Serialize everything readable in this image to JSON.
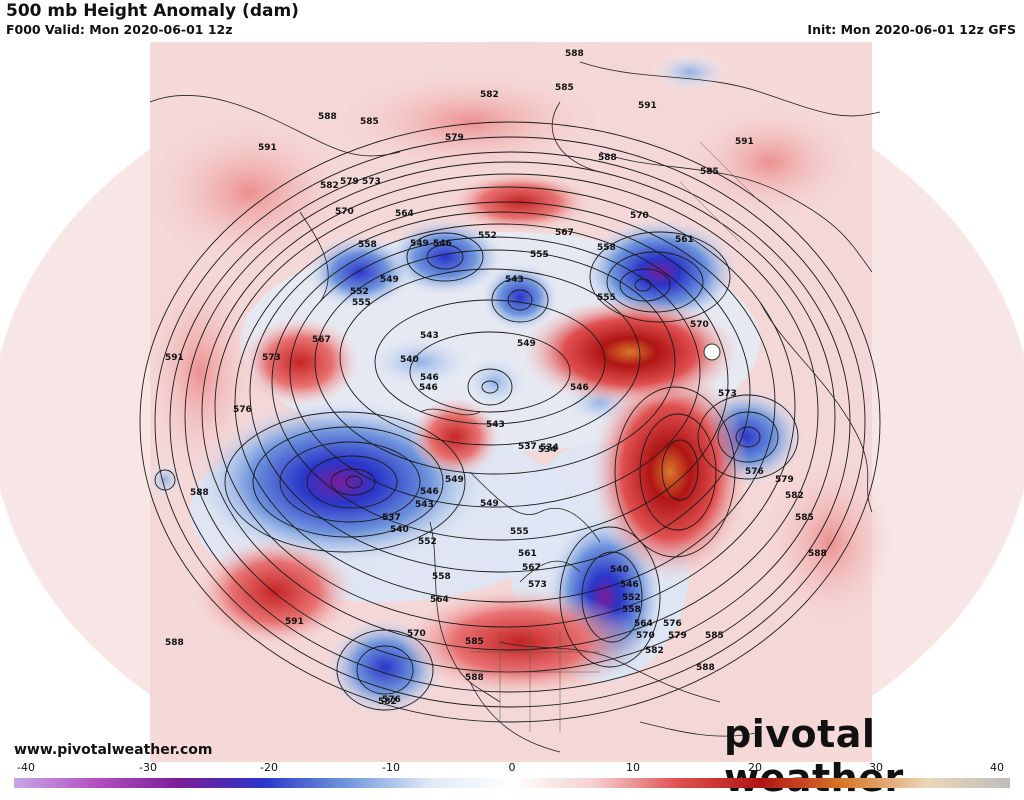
{
  "header": {
    "title": "500 mb Height Anomaly (dam)",
    "valid": "F000 Valid: Mon 2020-06-01 12z",
    "init": "Init: Mon 2020-06-01 12z GFS"
  },
  "footer": {
    "website": "www.pivotalweather.com",
    "brand": "pivotal weather"
  },
  "colorbar": {
    "ticks": [
      "-40",
      "-30",
      "-20",
      "-10",
      "0",
      "10",
      "20",
      "30",
      "40"
    ],
    "stops": [
      "#c9a6e6",
      "#b24fc0",
      "#7a1d9b",
      "#2a36c9",
      "#6f95dc",
      "#dfe9f5",
      "#ffffff",
      "#f5cfcf",
      "#e05050",
      "#b01515",
      "#d8782a",
      "#ecd7b8",
      "#bdbdbd"
    ]
  },
  "contour_labels": [
    {
      "text": "588"
    },
    {
      "text": "585"
    },
    {
      "text": "591"
    },
    {
      "text": "582"
    },
    {
      "text": "579"
    },
    {
      "text": "576"
    },
    {
      "text": "573"
    },
    {
      "text": "570"
    },
    {
      "text": "567"
    },
    {
      "text": "564"
    },
    {
      "text": "561"
    },
    {
      "text": "558"
    },
    {
      "text": "555"
    },
    {
      "text": "552"
    },
    {
      "text": "549"
    },
    {
      "text": "546"
    },
    {
      "text": "543"
    },
    {
      "text": "540"
    },
    {
      "text": "537"
    },
    {
      "text": "534"
    }
  ],
  "map_labels": [
    {
      "text": "588"
    },
    {
      "text": "585"
    },
    {
      "text": "591"
    },
    {
      "text": "582"
    },
    {
      "text": "579"
    },
    {
      "text": "573"
    },
    {
      "text": "570"
    },
    {
      "text": "567"
    },
    {
      "text": "564"
    },
    {
      "text": "558"
    },
    {
      "text": "552"
    },
    {
      "text": "555"
    },
    {
      "text": "549"
    },
    {
      "text": "546"
    },
    {
      "text": "543"
    },
    {
      "text": "540"
    },
    {
      "text": "537"
    },
    {
      "text": "534"
    },
    {
      "text": "561"
    },
    {
      "text": "576"
    },
    {
      "text": "591"
    },
    {
      "text": "588"
    },
    {
      "text": "585"
    },
    {
      "text": "582"
    },
    {
      "text": "579"
    },
    {
      "text": "573"
    },
    {
      "text": "570"
    },
    {
      "text": "567"
    },
    {
      "text": "558"
    },
    {
      "text": "546"
    }
  ]
}
